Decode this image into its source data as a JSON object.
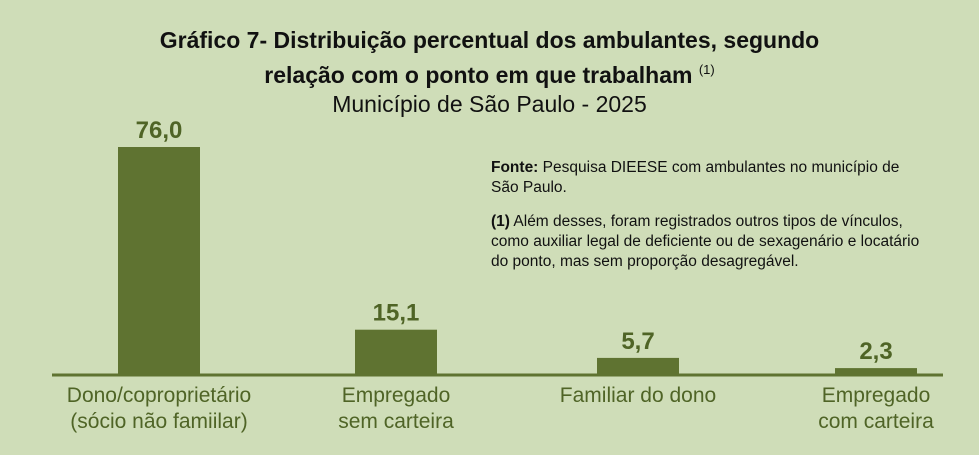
{
  "header": {
    "title_line1": "Gráfico 7- Distribuição percentual dos ambulantes, segundo",
    "title_line2": "relação com o ponto em que trabalham",
    "title_sup": "(1)",
    "subtitle": "Município de São Paulo - 2025"
  },
  "notes": {
    "source_label": "Fonte:",
    "source_text": "Pesquisa DIEESE com ambulantes no município de São Paulo.",
    "footnote_label": "(1)",
    "footnote_text": "Além desses, foram registrados outros tipos de vínculos, como auxiliar legal de deficiente ou de sexagenário e locatário do ponto, mas sem proporção desagregável."
  },
  "colors": {
    "background": "#cfddb8",
    "bar": "#5f7331",
    "value_label": "#4f6426",
    "category_label": "#4f6426",
    "axis": "#5f7331"
  },
  "chart_data": {
    "type": "bar",
    "categories": [
      [
        "Dono/coproprietário",
        "(sócio não famiilar)"
      ],
      [
        "Empregado",
        "sem carteira"
      ],
      [
        "Familiar do dono"
      ],
      [
        "Empregado",
        "com carteira"
      ]
    ],
    "values": [
      76.0,
      15.1,
      5.7,
      2.3
    ],
    "value_labels": [
      "76,0",
      "15,1",
      "5,7",
      "2,3"
    ],
    "ylim": [
      0,
      76.0
    ],
    "grid": false,
    "legend": "none"
  }
}
